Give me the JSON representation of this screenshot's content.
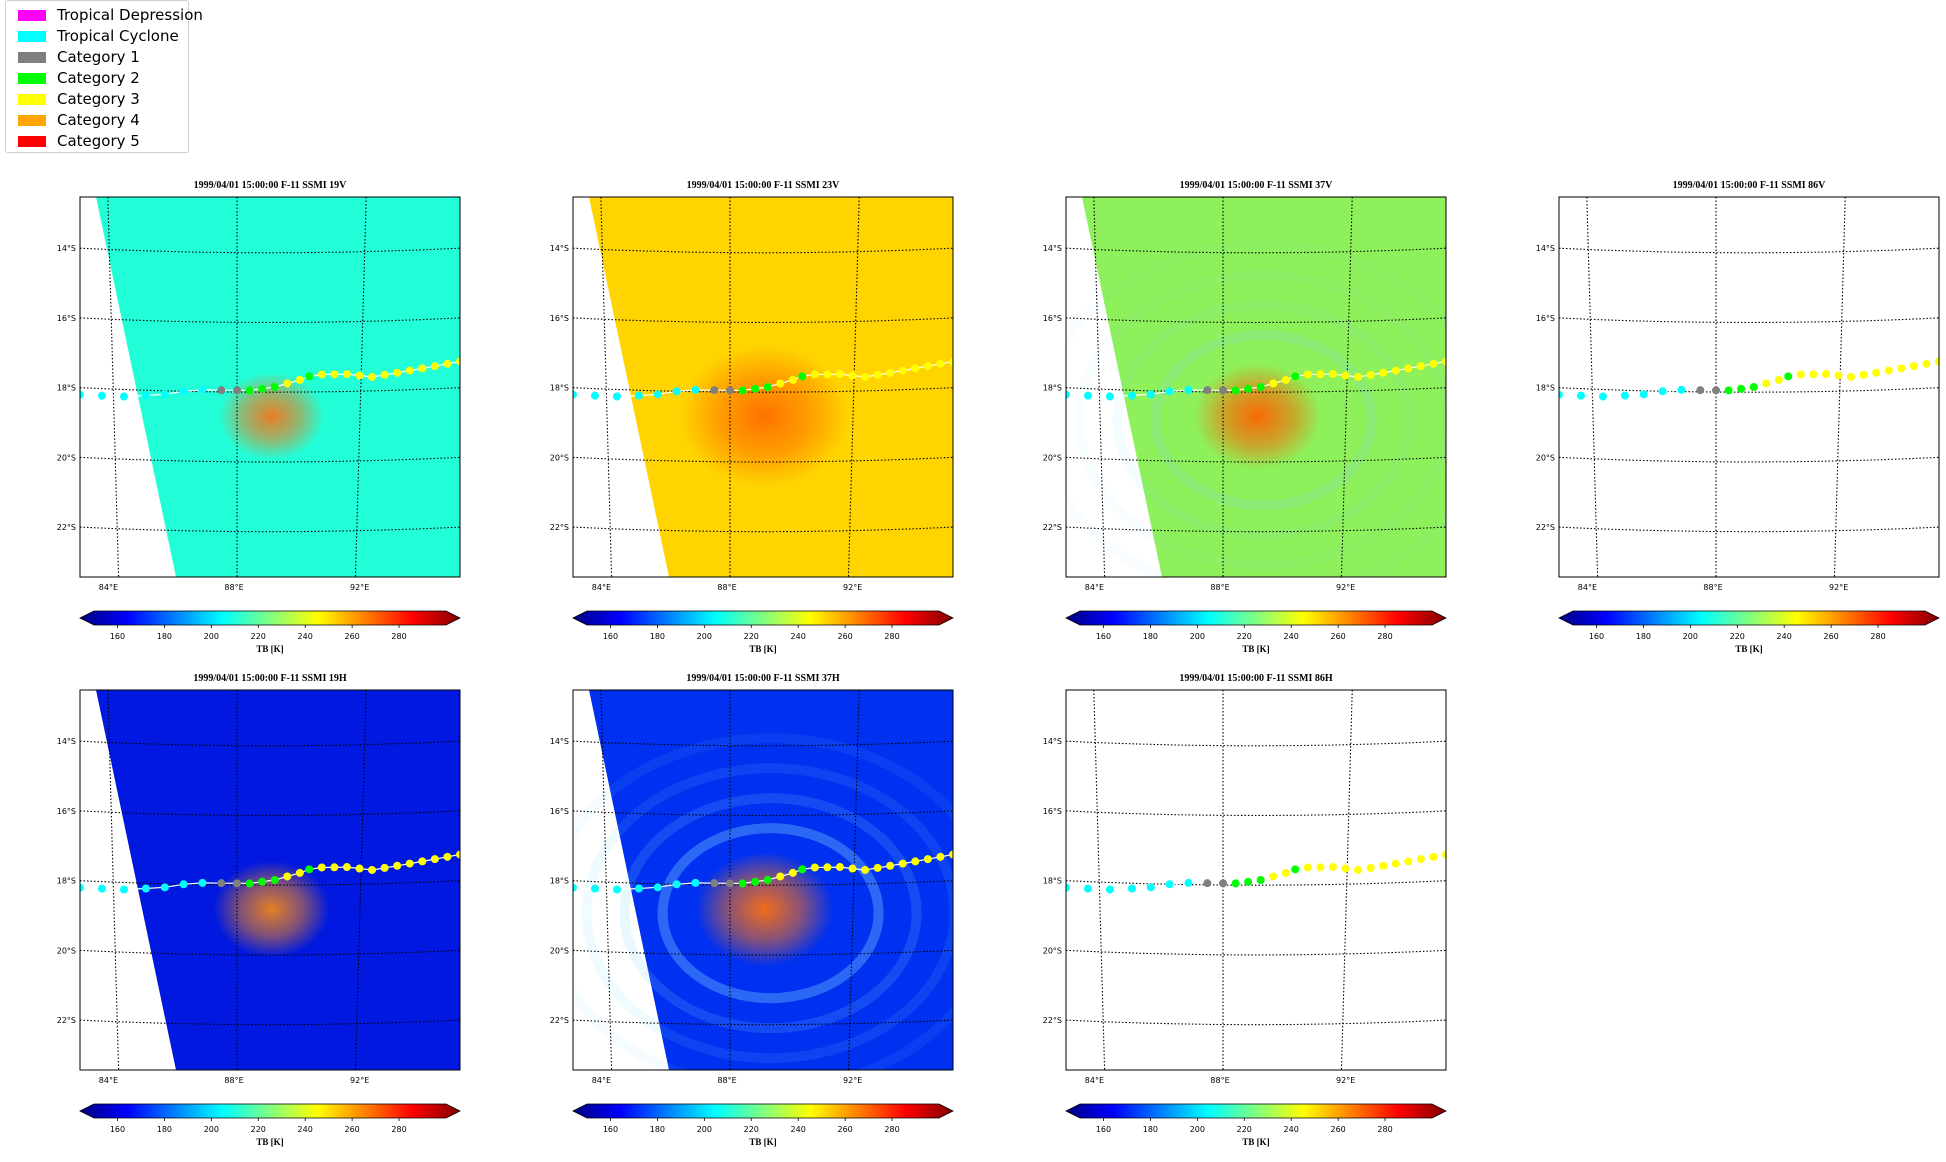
{
  "legend": {
    "items": [
      {
        "label": "Tropical Depression",
        "color": "#ff00ff"
      },
      {
        "label": "Tropical Cyclone",
        "color": "#00ffff"
      },
      {
        "label": "Category 1",
        "color": "#808080"
      },
      {
        "label": "Category 2",
        "color": "#00ff00"
      },
      {
        "label": "Category 3",
        "color": "#ffff00"
      },
      {
        "label": "Category 4",
        "color": "#ffa500"
      },
      {
        "label": "Category 5",
        "color": "#ff0000"
      }
    ]
  },
  "chart_data": [
    {
      "type": "heatmap",
      "title": "1999/04/01 15:00:00  F-11 SSMI 19V",
      "background": "#22ffd8",
      "core": "#ff7010",
      "coreStrength": 0.9,
      "coreSize": 1.0,
      "rings": 0,
      "xticks": [
        "84°E",
        "88°E",
        "92°E"
      ],
      "yticks": [
        "14°S",
        "16°S",
        "18°S",
        "20°S",
        "22°S"
      ],
      "colorbar": {
        "label": "TB [K]",
        "ticks": [
          "160",
          "180",
          "200",
          "220",
          "240",
          "260",
          "280"
        ],
        "range": [
          150,
          300
        ],
        "extend": "both"
      }
    },
    {
      "type": "heatmap",
      "title": "1999/04/01 15:00:00  F-11 SSMI 23V",
      "background": "#ffd400",
      "core": "#ff5a00",
      "coreStrength": 0.8,
      "coreSize": 1.6,
      "rings": 0,
      "xticks": [
        "84°E",
        "88°E",
        "92°E"
      ],
      "yticks": [
        "14°S",
        "16°S",
        "18°S",
        "20°S",
        "22°S"
      ],
      "colorbar": {
        "label": "TB [K]",
        "ticks": [
          "160",
          "180",
          "200",
          "220",
          "240",
          "260",
          "280"
        ],
        "range": [
          150,
          300
        ],
        "extend": "both"
      }
    },
    {
      "type": "heatmap",
      "title": "1999/04/01 15:00:00  F-11 SSMI 37V",
      "background": "#8ef05a",
      "core": "#ff6200",
      "coreStrength": 0.95,
      "coreSize": 1.2,
      "rings": 0.3,
      "xticks": [
        "84°E",
        "88°E",
        "92°E"
      ],
      "yticks": [
        "14°S",
        "16°S",
        "18°S",
        "20°S",
        "22°S"
      ],
      "colorbar": {
        "label": "TB [K]",
        "ticks": [
          "160",
          "180",
          "200",
          "220",
          "240",
          "260",
          "280"
        ],
        "range": [
          150,
          300
        ],
        "extend": "both"
      }
    },
    {
      "type": "heatmap",
      "title": "1999/04/01 15:00:00  F-11 SSMI 86V",
      "background": "none",
      "core": "none",
      "coreStrength": 0,
      "coreSize": 0,
      "rings": 0,
      "xticks": [
        "84°E",
        "88°E",
        "92°E"
      ],
      "yticks": [
        "14°S",
        "16°S",
        "18°S",
        "20°S",
        "22°S"
      ],
      "colorbar": {
        "label": "TB [K]",
        "ticks": [
          "160",
          "180",
          "200",
          "220",
          "240",
          "260",
          "280"
        ],
        "range": [
          150,
          300
        ],
        "extend": "both"
      }
    },
    {
      "type": "heatmap",
      "title": "1999/04/01 15:00:00  F-11 SSMI 19H",
      "background": "#0018e0",
      "core": "#ff8a10",
      "coreStrength": 0.9,
      "coreSize": 1.1,
      "rings": 0,
      "xticks": [
        "84°E",
        "88°E",
        "92°E"
      ],
      "yticks": [
        "14°S",
        "16°S",
        "18°S",
        "20°S",
        "22°S"
      ],
      "colorbar": {
        "label": "TB [K]",
        "ticks": [
          "160",
          "180",
          "200",
          "220",
          "240",
          "260",
          "280"
        ],
        "range": [
          150,
          300
        ],
        "extend": "both"
      }
    },
    {
      "type": "heatmap",
      "title": "1999/04/01 15:00:00  F-11 SSMI 37H",
      "background": "#0030f0",
      "core": "#ff7010",
      "coreStrength": 0.95,
      "coreSize": 1.3,
      "rings": 0.6,
      "xticks": [
        "84°E",
        "88°E",
        "92°E"
      ],
      "yticks": [
        "14°S",
        "16°S",
        "18°S",
        "20°S",
        "22°S"
      ],
      "colorbar": {
        "label": "TB [K]",
        "ticks": [
          "160",
          "180",
          "200",
          "220",
          "240",
          "260",
          "280"
        ],
        "range": [
          150,
          300
        ],
        "extend": "both"
      }
    },
    {
      "type": "heatmap",
      "title": "1999/04/01 15:00:00  F-11 SSMI 86H",
      "background": "none",
      "core": "none",
      "coreStrength": 0,
      "coreSize": 0,
      "rings": 0,
      "xticks": [
        "84°E",
        "88°E",
        "92°E"
      ],
      "yticks": [
        "14°S",
        "16°S",
        "18°S",
        "20°S",
        "22°S"
      ],
      "colorbar": {
        "label": "TB [K]",
        "ticks": [
          "160",
          "180",
          "200",
          "220",
          "240",
          "260",
          "280"
        ],
        "range": [
          150,
          300
        ],
        "extend": "both"
      }
    }
  ],
  "track": {
    "points": [
      {
        "lon": 83.0,
        "lat": -18.2,
        "cat": "Tropical Cyclone"
      },
      {
        "lon": 83.7,
        "lat": -18.2,
        "cat": "Tropical Cyclone"
      },
      {
        "lon": 84.4,
        "lat": -18.2,
        "cat": "Tropical Cyclone"
      },
      {
        "lon": 85.1,
        "lat": -18.15,
        "cat": "Tropical Cyclone"
      },
      {
        "lon": 85.7,
        "lat": -18.1,
        "cat": "Tropical Cyclone"
      },
      {
        "lon": 86.3,
        "lat": -18.0,
        "cat": "Tropical Cyclone"
      },
      {
        "lon": 86.9,
        "lat": -17.95,
        "cat": "Tropical Cyclone"
      },
      {
        "lon": 87.5,
        "lat": -17.95,
        "cat": "Category 1"
      },
      {
        "lon": 88.0,
        "lat": -17.95,
        "cat": "Category 1"
      },
      {
        "lon": 88.4,
        "lat": -17.95,
        "cat": "Category 2"
      },
      {
        "lon": 88.8,
        "lat": -17.9,
        "cat": "Category 2"
      },
      {
        "lon": 89.2,
        "lat": -17.85,
        "cat": "Category 2"
      },
      {
        "lon": 89.6,
        "lat": -17.75,
        "cat": "Category 3"
      },
      {
        "lon": 90.0,
        "lat": -17.65,
        "cat": "Category 3"
      },
      {
        "lon": 90.3,
        "lat": -17.55,
        "cat": "Category 2"
      },
      {
        "lon": 90.7,
        "lat": -17.5,
        "cat": "Category 3"
      },
      {
        "lon": 91.1,
        "lat": -17.5,
        "cat": "Category 3"
      },
      {
        "lon": 91.5,
        "lat": -17.5,
        "cat": "Category 3"
      },
      {
        "lon": 91.9,
        "lat": -17.55,
        "cat": "Category 3"
      },
      {
        "lon": 92.3,
        "lat": -17.6,
        "cat": "Category 3"
      },
      {
        "lon": 92.7,
        "lat": -17.55,
        "cat": "Category 3"
      },
      {
        "lon": 93.1,
        "lat": -17.5,
        "cat": "Category 3"
      },
      {
        "lon": 93.5,
        "lat": -17.45,
        "cat": "Category 3"
      },
      {
        "lon": 93.9,
        "lat": -17.4,
        "cat": "Category 3"
      },
      {
        "lon": 94.3,
        "lat": -17.35,
        "cat": "Category 3"
      },
      {
        "lon": 94.7,
        "lat": -17.3,
        "cat": "Category 3"
      },
      {
        "lon": 95.1,
        "lat": -17.25,
        "cat": "Category 3"
      }
    ]
  }
}
